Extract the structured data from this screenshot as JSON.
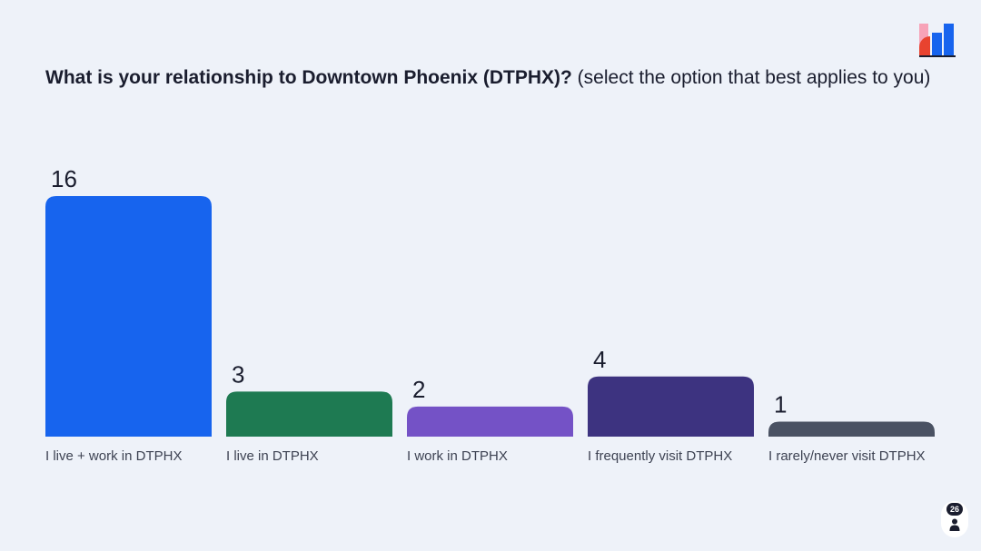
{
  "title": {
    "question": "What is your relationship to Downtown Phoenix (DTPHX)?",
    "hint": "(select the option that best applies to you)"
  },
  "logo_icon": "mentimeter-logo-icon",
  "responses": {
    "count": "26",
    "icon": "person-icon"
  },
  "chart_data": {
    "type": "bar",
    "categories": [
      "I live + work in DTPHX",
      "I live in DTPHX",
      "I work in DTPHX",
      "I frequently visit DTPHX",
      "I rarely/never visit DTPHX"
    ],
    "values": [
      16,
      3,
      2,
      4,
      1
    ],
    "colors": [
      "#1764ee",
      "#1e7a52",
      "#7452c6",
      "#3d3380",
      "#4a5263"
    ],
    "value_labels": [
      "16",
      "3",
      "2",
      "4",
      "1"
    ],
    "grid": false,
    "legend": "none"
  }
}
